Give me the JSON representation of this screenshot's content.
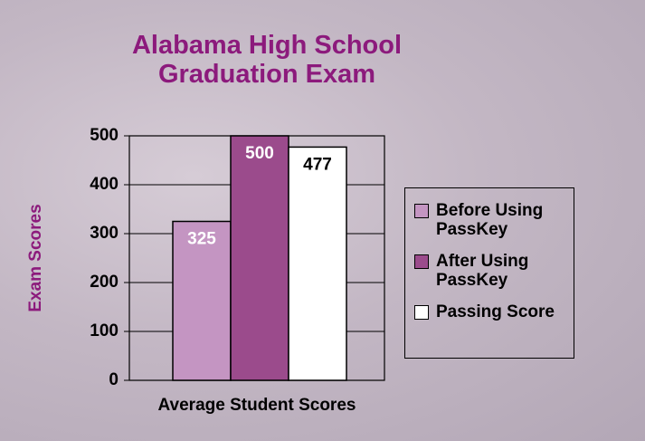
{
  "chart_data": {
    "type": "bar",
    "title": "Alabama High School Graduation Exam",
    "ylabel": "Exam Scores",
    "categories": [
      "Average Student Scores"
    ],
    "series": [
      {
        "name": "Before Using PassKey",
        "color": "#c495c2",
        "values": [
          325
        ]
      },
      {
        "name": "After Using PassKey",
        "color": "#9b4b8c",
        "values": [
          500
        ]
      },
      {
        "name": "Passing Score",
        "color": "#ffffff",
        "values": [
          477
        ]
      }
    ],
    "ylim": [
      0,
      500
    ],
    "yticks": [
      0,
      100,
      200,
      300,
      400,
      500
    ],
    "grid": true,
    "legend": "right"
  }
}
